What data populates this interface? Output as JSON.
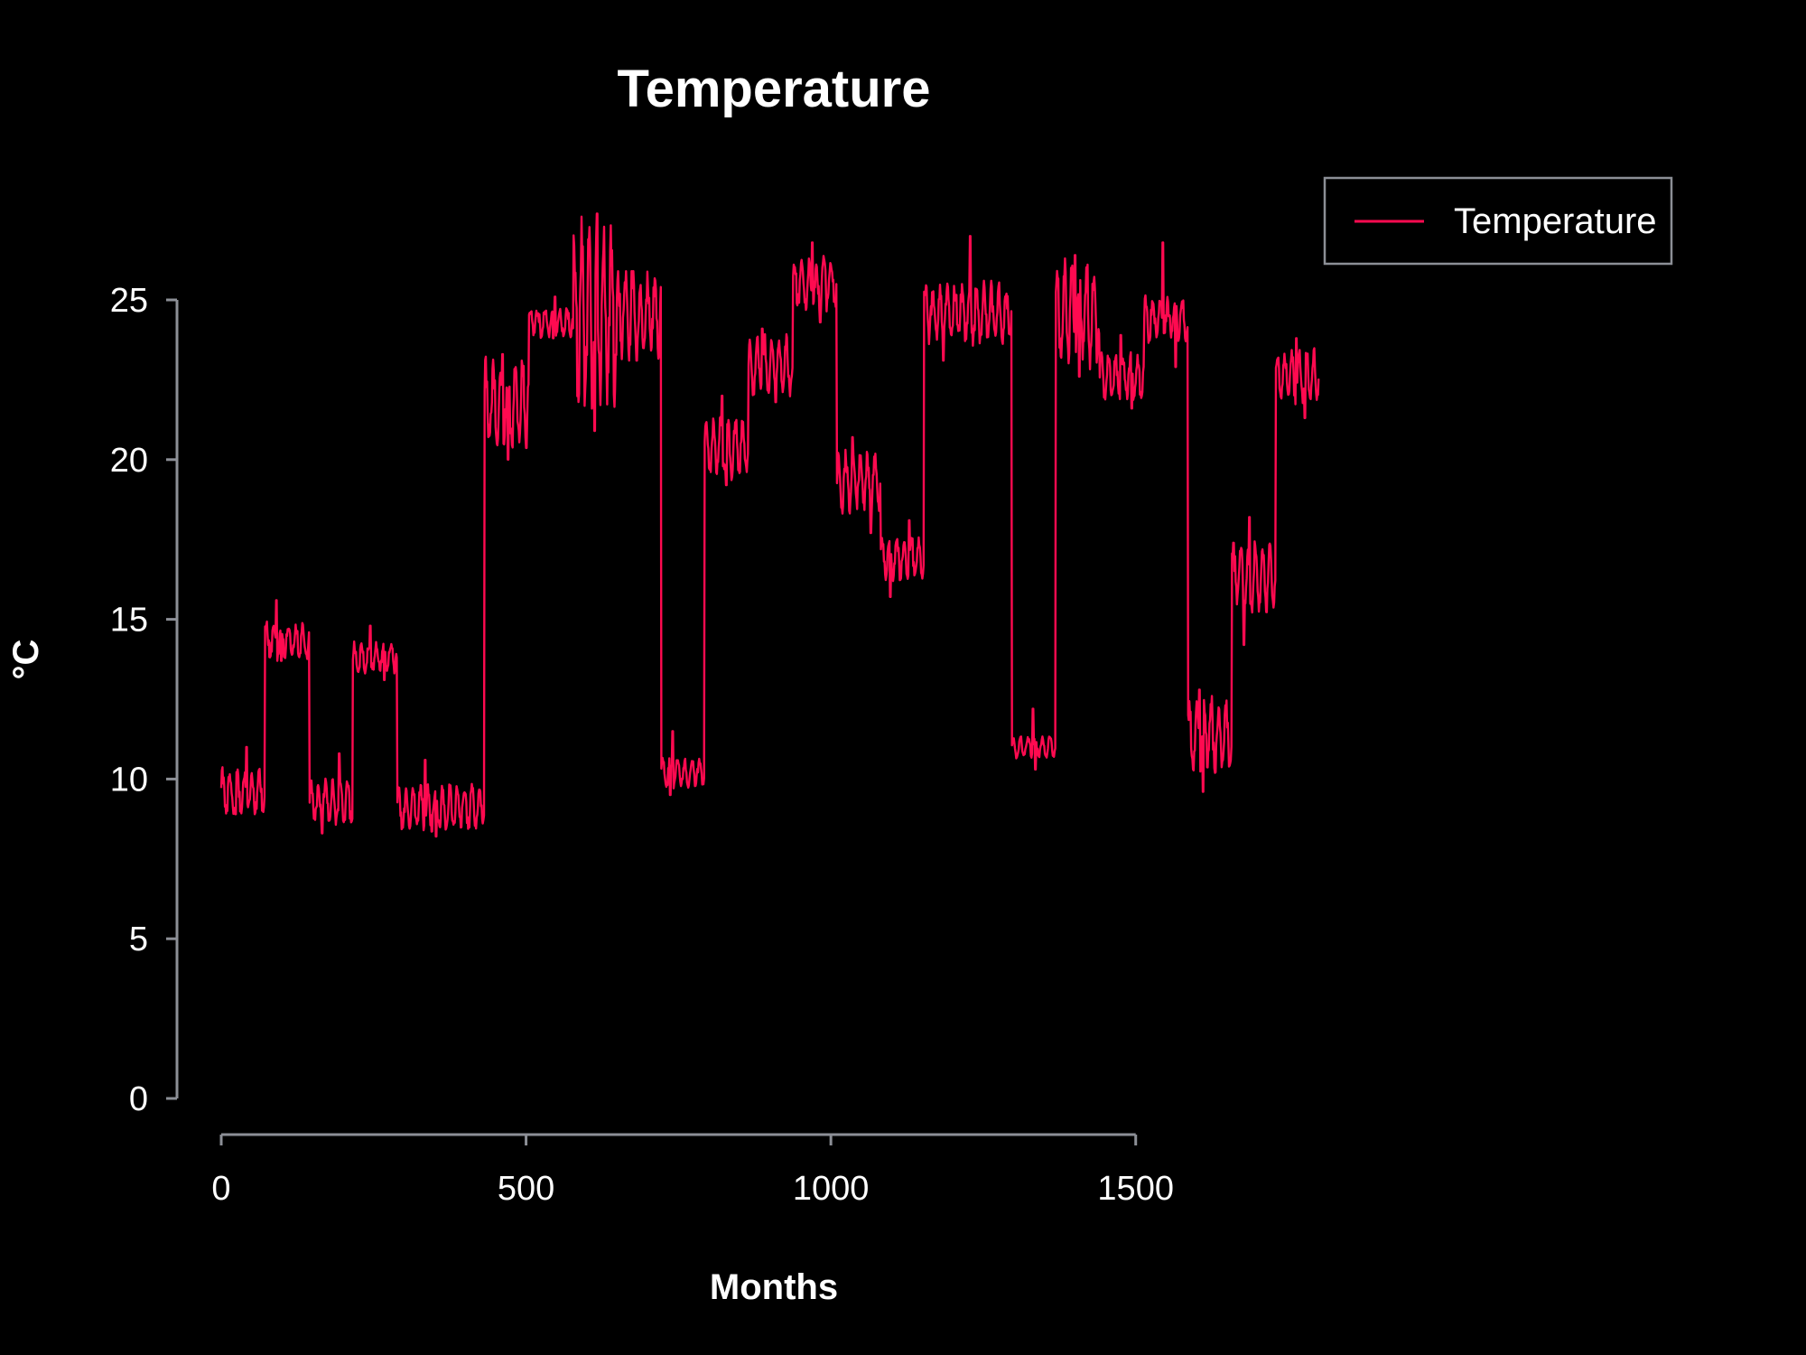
{
  "chart_data": {
    "type": "line",
    "title": "Temperature",
    "xlabel": "Months",
    "ylabel": "°C",
    "xlim": [
      0,
      1810
    ],
    "ylim": [
      0,
      25
    ],
    "xticks": [
      0,
      500,
      1000,
      1500
    ],
    "yticks": [
      0,
      5,
      10,
      15,
      20,
      25
    ],
    "legend": {
      "position": "top-right",
      "entries": [
        "Temperature"
      ]
    },
    "grid": false,
    "colors": {
      "background": "#000000",
      "series": "#ff0a50",
      "axis": "#8c8f96",
      "text": "#ffffff"
    },
    "series": [
      {
        "name": "Temperature",
        "segments": [
          {
            "x_start": 0,
            "x_end": 72,
            "mean": 9.6,
            "amplitude": 0.6,
            "peak": 11.0,
            "trough": 8.9
          },
          {
            "x_start": 72,
            "x_end": 145,
            "mean": 14.3,
            "amplitude": 0.5,
            "peak": 15.6,
            "trough": 13.7
          },
          {
            "x_start": 145,
            "x_end": 216,
            "mean": 9.3,
            "amplitude": 0.6,
            "peak": 10.8,
            "trough": 8.3
          },
          {
            "x_start": 216,
            "x_end": 289,
            "mean": 13.8,
            "amplitude": 0.4,
            "peak": 14.8,
            "trough": 13.1
          },
          {
            "x_start": 289,
            "x_end": 432,
            "mean": 9.1,
            "amplitude": 0.6,
            "peak": 10.6,
            "trough": 8.2
          },
          {
            "x_start": 432,
            "x_end": 505,
            "mean": 21.7,
            "amplitude": 1.2,
            "peak": 23.3,
            "trough": 20.0
          },
          {
            "x_start": 505,
            "x_end": 577,
            "mean": 24.3,
            "amplitude": 0.4,
            "peak": 25.1,
            "trough": 23.8
          },
          {
            "x_start": 577,
            "x_end": 649,
            "mean": 24.5,
            "amplitude": 2.5,
            "peak": 27.7,
            "trough": 20.9
          },
          {
            "x_start": 649,
            "x_end": 722,
            "mean": 24.5,
            "amplitude": 1.2,
            "peak": 25.9,
            "trough": 23.1
          },
          {
            "x_start": 722,
            "x_end": 793,
            "mean": 10.2,
            "amplitude": 0.4,
            "peak": 11.5,
            "trough": 9.5
          },
          {
            "x_start": 793,
            "x_end": 865,
            "mean": 20.4,
            "amplitude": 0.8,
            "peak": 22.0,
            "trough": 19.2
          },
          {
            "x_start": 865,
            "x_end": 938,
            "mean": 22.9,
            "amplitude": 0.8,
            "peak": 24.1,
            "trough": 21.8
          },
          {
            "x_start": 938,
            "x_end": 1010,
            "mean": 25.5,
            "amplitude": 0.7,
            "peak": 26.8,
            "trough": 24.3
          },
          {
            "x_start": 1010,
            "x_end": 1082,
            "mean": 19.3,
            "amplitude": 0.8,
            "peak": 20.7,
            "trough": 17.7
          },
          {
            "x_start": 1082,
            "x_end": 1153,
            "mean": 16.9,
            "amplitude": 0.6,
            "peak": 18.1,
            "trough": 15.7
          },
          {
            "x_start": 1153,
            "x_end": 1297,
            "mean": 24.6,
            "amplitude": 0.8,
            "peak": 27.0,
            "trough": 23.1
          },
          {
            "x_start": 1297,
            "x_end": 1369,
            "mean": 11.0,
            "amplitude": 0.3,
            "peak": 12.2,
            "trough": 10.3
          },
          {
            "x_start": 1369,
            "x_end": 1441,
            "mean": 24.6,
            "amplitude": 1.4,
            "peak": 26.4,
            "trough": 22.6
          },
          {
            "x_start": 1441,
            "x_end": 1514,
            "mean": 22.6,
            "amplitude": 0.6,
            "peak": 23.9,
            "trough": 21.6
          },
          {
            "x_start": 1514,
            "x_end": 1586,
            "mean": 24.4,
            "amplitude": 0.6,
            "peak": 26.8,
            "trough": 22.9
          },
          {
            "x_start": 1586,
            "x_end": 1658,
            "mean": 11.4,
            "amplitude": 1.0,
            "peak": 12.8,
            "trough": 9.6
          },
          {
            "x_start": 1658,
            "x_end": 1730,
            "mean": 16.3,
            "amplitude": 1.0,
            "peak": 18.2,
            "trough": 14.2
          },
          {
            "x_start": 1730,
            "x_end": 1801,
            "mean": 22.6,
            "amplitude": 0.7,
            "peak": 23.8,
            "trough": 21.3
          }
        ]
      }
    ]
  }
}
